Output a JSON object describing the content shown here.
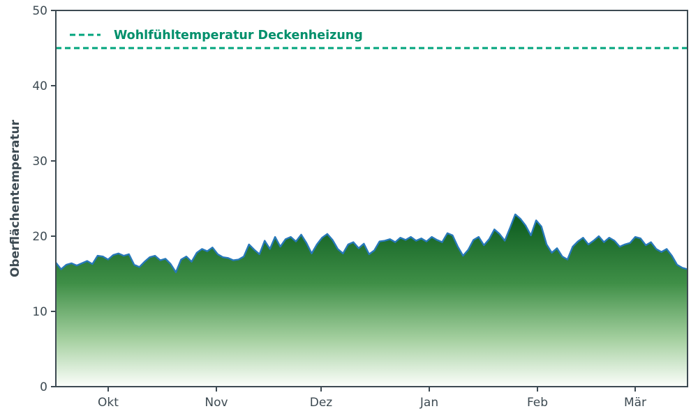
{
  "chart_data": {
    "type": "area",
    "title": "",
    "xlabel": "",
    "ylabel": "Oberflächentemperatur",
    "ylim": [
      0,
      50
    ],
    "grid": false,
    "legend_position": "upper-left-inside",
    "x_range_days": 181,
    "y_ticks": [
      0,
      10,
      20,
      30,
      40,
      50
    ],
    "x_ticks": [
      {
        "label": "Okt",
        "day": 15
      },
      {
        "label": "Nov",
        "day": 46
      },
      {
        "label": "Dez",
        "day": 76
      },
      {
        "label": "Jan",
        "day": 107
      },
      {
        "label": "Feb",
        "day": 138
      },
      {
        "label": "Mär",
        "day": 166
      }
    ],
    "threshold": {
      "value": 45,
      "label": "Wohlfühltemperatur Deckenheizung"
    },
    "series": [
      {
        "name": "Oberflächentemperatur",
        "sample_interval_days": 1.4959,
        "values": [
          16.5,
          15.6,
          16.2,
          16.4,
          16.1,
          16.4,
          16.7,
          16.3,
          17.4,
          17.3,
          16.9,
          17.5,
          17.7,
          17.4,
          17.6,
          16.2,
          15.9,
          16.6,
          17.2,
          17.4,
          16.8,
          17.0,
          16.3,
          15.2,
          16.9,
          17.3,
          16.6,
          17.8,
          18.3,
          18.0,
          18.5,
          17.6,
          17.2,
          17.1,
          16.8,
          16.9,
          17.3,
          18.9,
          18.2,
          17.6,
          19.4,
          18.3,
          19.9,
          18.6,
          19.6,
          19.9,
          19.3,
          20.2,
          19.1,
          17.7,
          18.9,
          19.8,
          20.3,
          19.5,
          18.3,
          17.7,
          18.9,
          19.2,
          18.4,
          19.0,
          17.6,
          18.1,
          19.3,
          19.4,
          19.6,
          19.2,
          19.8,
          19.5,
          19.9,
          19.4,
          19.7,
          19.3,
          19.9,
          19.5,
          19.2,
          20.4,
          20.1,
          18.6,
          17.4,
          18.2,
          19.5,
          19.9,
          18.8,
          19.6,
          20.9,
          20.3,
          19.4,
          21.1,
          22.9,
          22.3,
          21.4,
          20.1,
          22.1,
          21.3,
          18.9,
          17.8,
          18.4,
          17.3,
          16.9,
          18.6,
          19.3,
          19.8,
          18.9,
          19.4,
          20.0,
          19.2,
          19.8,
          19.4,
          18.6,
          18.9,
          19.1,
          19.9,
          19.7,
          18.8,
          19.2,
          18.3,
          17.9,
          18.3,
          17.4,
          16.2,
          15.8,
          15.6
        ]
      }
    ],
    "colors": {
      "line": "#2778b9",
      "threshold": "#00a47c",
      "legend_text": "#008f6b",
      "frame": "#3d4a52",
      "text": "#3d4a52",
      "gradient_stops": [
        {
          "offset": "0%",
          "color": "#0b5a1e"
        },
        {
          "offset": "40%",
          "color": "#3f8f47"
        },
        {
          "offset": "72%",
          "color": "#a3cf9e"
        },
        {
          "offset": "100%",
          "color": "#fcfefb"
        }
      ]
    }
  }
}
